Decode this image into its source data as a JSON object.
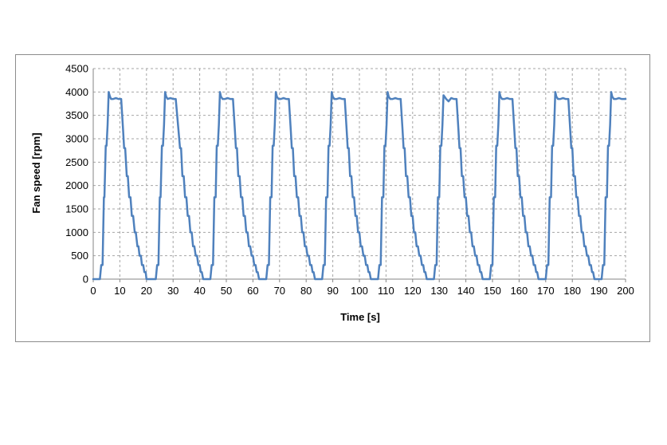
{
  "chart_data": {
    "type": "line",
    "title": "",
    "xlabel": "Time [s]",
    "ylabel": "Fan speed [rpm]",
    "xlim": [
      0,
      200
    ],
    "ylim": [
      0,
      4500
    ],
    "xticks": [
      0,
      10,
      20,
      30,
      40,
      50,
      60,
      70,
      80,
      90,
      100,
      110,
      120,
      130,
      140,
      150,
      160,
      170,
      180,
      190,
      200
    ],
    "yticks": [
      0,
      500,
      1000,
      1500,
      2000,
      2500,
      3000,
      3500,
      4000,
      4500
    ],
    "grid": true,
    "legend": "none",
    "series": [
      {
        "color": "#4f81bd",
        "x": [
          0,
          2.5,
          3,
          3.5,
          4,
          4.2,
          4.7,
          5,
          5.4,
          5.8,
          6.3,
          6.7,
          7.5,
          8.5,
          9.5,
          10.5,
          11.2,
          11.6,
          12,
          12.6,
          13,
          13.5,
          14,
          14.5,
          15,
          15.6,
          16,
          16.6,
          17,
          17.4,
          17.9,
          18.3,
          18.8,
          19.2,
          19.7,
          20,
          20.3,
          21,
          23.5,
          24,
          24.5,
          25,
          25.3,
          25.8,
          26.2,
          26.6,
          27,
          27.4,
          28,
          29,
          30,
          31,
          32,
          32.6,
          33,
          33.5,
          34,
          34.5,
          35,
          35.5,
          36,
          36.5,
          37,
          37.5,
          38,
          38.5,
          39,
          39.5,
          40,
          40.4,
          40.8,
          41.3,
          42,
          44,
          44.5,
          45,
          45.5,
          46,
          46.4,
          46.8,
          47.2,
          47.6,
          48,
          48.6,
          49.5,
          50.5,
          51.5,
          52.5,
          53.2,
          53.6,
          54,
          54.5,
          55,
          55.5,
          56,
          56.5,
          57,
          57.5,
          58,
          58.5,
          59,
          59.5,
          60,
          60.5,
          61,
          61.4,
          61.8,
          62.3,
          63,
          65,
          65.5,
          66,
          66.5,
          67,
          67.4,
          67.8,
          68.2,
          68.6,
          69,
          69.6,
          70.5,
          71.5,
          72.5,
          73.5,
          74.2,
          74.6,
          75,
          75.5,
          76,
          76.5,
          77,
          77.5,
          78,
          78.5,
          79,
          79.5,
          80,
          80.5,
          81,
          81.5,
          82,
          82.4,
          82.8,
          83.3,
          84,
          86,
          86.5,
          87,
          87.5,
          88,
          88.4,
          88.8,
          89.2,
          89.6,
          90,
          90.6,
          91.5,
          92.5,
          93.5,
          94.5,
          95.2,
          95.6,
          96,
          96.5,
          97,
          97.5,
          98,
          98.5,
          99,
          99.5,
          100,
          100.5,
          101,
          101.5,
          102,
          102.5,
          103,
          103.4,
          103.8,
          104.3,
          105,
          107,
          107.5,
          108,
          108.5,
          109,
          109.4,
          109.8,
          110.2,
          110.6,
          111,
          111.6,
          112.5,
          113.5,
          114.5,
          115.5,
          116.2,
          116.6,
          117,
          117.5,
          118,
          118.5,
          119,
          119.5,
          120,
          120.5,
          121,
          121.5,
          122,
          122.5,
          123,
          123.5,
          124,
          124.4,
          124.8,
          125.3,
          126,
          128,
          128.5,
          129,
          129.5,
          130,
          130.4,
          130.8,
          131.2,
          131.6,
          132,
          132.6,
          133.5,
          134.5,
          135.5,
          136.5,
          137.2,
          137.6,
          138,
          138.5,
          139,
          139.5,
          140,
          140.5,
          141,
          141.5,
          142,
          142.5,
          143,
          143.5,
          144,
          144.5,
          145,
          145.4,
          145.8,
          146.3,
          147,
          149,
          149.5,
          150,
          150.5,
          151,
          151.4,
          151.8,
          152.2,
          152.6,
          153,
          153.6,
          154.5,
          155.5,
          156.5,
          157.5,
          158.2,
          158.6,
          159,
          159.5,
          160,
          160.5,
          161,
          161.5,
          162,
          162.5,
          163,
          163.5,
          164,
          164.5,
          165,
          165.5,
          166,
          166.4,
          166.8,
          167.3,
          168,
          170,
          170.5,
          171,
          171.5,
          172,
          172.4,
          172.8,
          173.2,
          173.6,
          174,
          174.6,
          175.5,
          176.5,
          177.5,
          178.5,
          179.2,
          179.6,
          180,
          180.5,
          181,
          181.5,
          182,
          182.5,
          183,
          183.5,
          184,
          184.5,
          185,
          185.5,
          186,
          186.5,
          187,
          187.4,
          187.8,
          188.3,
          189,
          191,
          191.5,
          192,
          192.5,
          193,
          193.4,
          193.8,
          194.2,
          194.6,
          195,
          195.6,
          196.5,
          197.5,
          198.5,
          199.5,
          200
        ],
        "y": [
          0,
          0,
          300,
          300,
          1750,
          1750,
          2850,
          2850,
          3300,
          4000,
          3900,
          3850,
          3850,
          3870,
          3850,
          3850,
          3200,
          2800,
          2800,
          2200,
          2200,
          1750,
          1750,
          1350,
          1350,
          1000,
          1000,
          700,
          700,
          500,
          500,
          300,
          300,
          150,
          150,
          0,
          0,
          0,
          0,
          300,
          300,
          1750,
          1750,
          2850,
          2850,
          3300,
          4000,
          3900,
          3850,
          3870,
          3850,
          3850,
          3200,
          2800,
          2800,
          2200,
          2200,
          1750,
          1750,
          1350,
          1350,
          1000,
          1000,
          700,
          700,
          500,
          500,
          300,
          300,
          150,
          150,
          0,
          0,
          0,
          300,
          300,
          1750,
          1750,
          2850,
          2850,
          3300,
          4000,
          3900,
          3850,
          3850,
          3870,
          3850,
          3850,
          3200,
          2800,
          2800,
          2200,
          2200,
          1750,
          1750,
          1350,
          1350,
          1000,
          1000,
          700,
          700,
          500,
          500,
          300,
          300,
          150,
          150,
          0,
          0,
          0,
          300,
          300,
          1750,
          1750,
          2850,
          2850,
          3300,
          4000,
          3900,
          3850,
          3850,
          3870,
          3850,
          3850,
          3200,
          2800,
          2800,
          2200,
          2200,
          1750,
          1750,
          1350,
          1350,
          1000,
          1000,
          700,
          700,
          500,
          500,
          300,
          300,
          150,
          150,
          0,
          0,
          0,
          300,
          300,
          1750,
          1750,
          2850,
          2850,
          3300,
          4000,
          3900,
          3850,
          3850,
          3870,
          3850,
          3850,
          3200,
          2800,
          2800,
          2200,
          2200,
          1750,
          1750,
          1350,
          1350,
          1000,
          1000,
          700,
          700,
          500,
          500,
          300,
          300,
          150,
          150,
          0,
          0,
          0,
          300,
          300,
          1750,
          1750,
          2850,
          2850,
          3300,
          4000,
          3900,
          3850,
          3850,
          3870,
          3850,
          3850,
          3200,
          2800,
          2800,
          2200,
          2200,
          1750,
          1750,
          1350,
          1350,
          1000,
          1000,
          700,
          700,
          500,
          500,
          300,
          300,
          150,
          150,
          0,
          0,
          0,
          300,
          300,
          1750,
          1750,
          2850,
          2850,
          3300,
          3930,
          3900,
          3850,
          3800,
          3870,
          3850,
          3850,
          3200,
          2800,
          2800,
          2200,
          2200,
          1750,
          1750,
          1350,
          1350,
          1000,
          1000,
          700,
          700,
          500,
          500,
          300,
          300,
          150,
          150,
          0,
          0,
          0,
          300,
          300,
          1750,
          1750,
          2850,
          2850,
          3300,
          4000,
          3900,
          3850,
          3850,
          3870,
          3850,
          3850,
          3200,
          2800,
          2800,
          2200,
          2200,
          1750,
          1750,
          1350,
          1350,
          1000,
          1000,
          700,
          700,
          500,
          500,
          300,
          300,
          150,
          150,
          0,
          0,
          0,
          300,
          300,
          1750,
          1750,
          2850,
          2850,
          3300,
          4000,
          3900,
          3850,
          3850,
          3870,
          3850,
          3850,
          3200,
          2800,
          2800,
          2200,
          2200,
          1750,
          1750,
          1350,
          1350,
          1000,
          1000,
          700,
          700,
          500,
          500,
          300,
          300,
          150,
          150,
          0,
          0,
          0,
          300,
          300,
          1750,
          1750,
          2850,
          2850,
          3300,
          4000,
          3900,
          3850,
          3850,
          3870,
          3850,
          3850,
          3850
        ]
      }
    ]
  }
}
